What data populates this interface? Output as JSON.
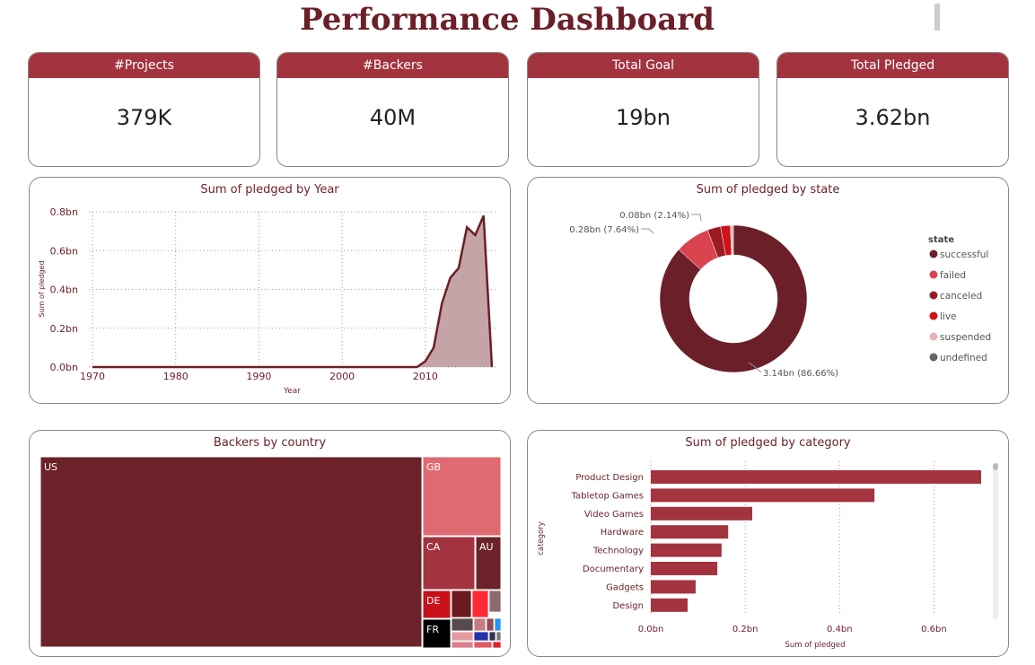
{
  "header": {
    "title": "Performance Dashboard"
  },
  "kpis": [
    {
      "label": "#Projects",
      "value": "379K"
    },
    {
      "label": "#Backers",
      "value": "40M"
    },
    {
      "label": "Total Goal",
      "value": "19bn"
    },
    {
      "label": "Total Pledged",
      "value": "3.62bn"
    }
  ],
  "colors": {
    "accent": "#a3343f",
    "dark": "#6b1f28"
  },
  "chart_data": [
    {
      "type": "area",
      "title": "Sum of pledged by Year",
      "xlabel": "Year",
      "ylabel": "Sum of pledged",
      "xlim": [
        1970,
        2018
      ],
      "ylim": [
        0,
        0.8
      ],
      "grid": true,
      "x_ticks": [
        "1970",
        "1980",
        "1990",
        "2000",
        "2010"
      ],
      "y_ticks": [
        "0.0bn",
        "0.2bn",
        "0.4bn",
        "0.6bn",
        "0.8bn"
      ],
      "x": [
        1970,
        2009,
        2010,
        2011,
        2012,
        2013,
        2014,
        2015,
        2016,
        2017,
        2018
      ],
      "values": [
        0,
        0,
        0.03,
        0.1,
        0.33,
        0.46,
        0.51,
        0.72,
        0.68,
        0.78,
        0
      ]
    },
    {
      "type": "pie",
      "title": "Sum of pledged by state",
      "legend_title": "state",
      "legend_position": "right",
      "slices": [
        {
          "name": "successful",
          "value": 86.66,
          "color": "#6b1f28",
          "label": "3.14bn (86.66%)"
        },
        {
          "name": "failed",
          "value": 7.64,
          "color": "#d9444f",
          "label": "0.28bn (7.64%)"
        },
        {
          "name": "canceled",
          "value": 2.9,
          "color": "#9b1b22",
          "label": ""
        },
        {
          "name": "live",
          "value": 2.14,
          "color": "#d0101a",
          "label": "0.08bn (2.14%)"
        },
        {
          "name": "suspended",
          "value": 0.5,
          "color": "#e6b3b6",
          "label": ""
        },
        {
          "name": "undefined",
          "value": 0.16,
          "color": "#666666",
          "label": ""
        }
      ]
    },
    {
      "type": "treemap",
      "title": "Backers by country",
      "items": [
        {
          "name": "US",
          "color": "#6b2228"
        },
        {
          "name": "GB",
          "color": "#df6a72"
        },
        {
          "name": "CA",
          "color": "#a3343f"
        },
        {
          "name": "AU",
          "color": "#6b2228"
        },
        {
          "name": "DE",
          "color": "#c9101a"
        },
        {
          "name": "FR",
          "color": "#000000"
        }
      ]
    },
    {
      "type": "bar",
      "orientation": "horizontal",
      "title": "Sum of pledged by category",
      "xlabel": "Sum of pledged",
      "ylabel": "category",
      "xlim": [
        0,
        0.7
      ],
      "x_ticks": [
        "0.0bn",
        "0.2bn",
        "0.4bn",
        "0.6bn"
      ],
      "categories": [
        "Product Design",
        "Tabletop Games",
        "Video Games",
        "Hardware",
        "Technology",
        "Documentary",
        "Gadgets",
        "Design"
      ],
      "values": [
        0.7,
        0.474,
        0.215,
        0.164,
        0.15,
        0.141,
        0.095,
        0.078
      ]
    }
  ]
}
